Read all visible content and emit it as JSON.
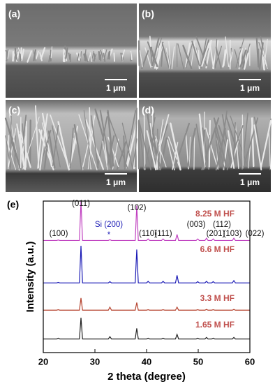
{
  "sem_panels": [
    {
      "label": "(a)",
      "scale_bar": "1 μm"
    },
    {
      "label": "(b)",
      "scale_bar": "1 μm"
    },
    {
      "label": "(c)",
      "scale_bar": "1 μm"
    },
    {
      "label": "(d)",
      "scale_bar": "1 μm"
    }
  ],
  "chart_data": {
    "type": "line",
    "panel_label": "(e)",
    "x_label": "2 theta (degree)",
    "y_label": "Intensity (a.u.)",
    "xlim": [
      20,
      60
    ],
    "xticks": [
      20,
      30,
      40,
      50,
      60
    ],
    "ylim": [
      0,
      100
    ],
    "x": [
      20,
      22.6,
      22.9,
      23.2,
      27.0,
      27.3,
      27.6,
      32.6,
      32.9,
      33.2,
      37.8,
      38.1,
      38.4,
      40.0,
      40.3,
      40.6,
      42.9,
      43.2,
      43.5,
      45.6,
      45.9,
      46.2,
      49.6,
      49.9,
      50.2,
      51.3,
      51.6,
      51.9,
      52.6,
      52.9,
      53.2,
      56.6,
      56.9,
      57.2,
      60
    ],
    "label_color": "#c0504d",
    "series": [
      {
        "name": "1.65 M HF",
        "color": "#222222",
        "values": [
          9,
          9,
          9.5,
          9,
          9,
          23,
          9,
          9,
          10.5,
          9,
          9,
          16,
          9,
          9,
          9.5,
          9,
          9,
          9.5,
          9,
          9,
          12,
          9,
          9,
          9.5,
          9,
          9,
          10,
          9,
          9,
          9.5,
          9,
          9,
          10,
          9,
          9
        ]
      },
      {
        "name": "3.3 M HF",
        "color": "#b5412c",
        "values": [
          28,
          28,
          28.3,
          28,
          28,
          36,
          28,
          28,
          30,
          28,
          28,
          33,
          28,
          28,
          28.3,
          28,
          28,
          28.3,
          28,
          28,
          30,
          28,
          28,
          28.3,
          28,
          28,
          28.5,
          28,
          28,
          28.3,
          28,
          28,
          28.5,
          28,
          28
        ]
      },
      {
        "name": "6.6 M HF",
        "color": "#1a1ab5",
        "values": [
          46,
          46,
          46.3,
          46,
          46,
          70.5,
          46,
          46,
          46.8,
          46,
          46,
          68,
          46,
          46,
          47,
          46,
          46,
          47,
          46,
          46,
          51,
          46,
          46,
          46.8,
          46,
          46,
          47,
          46,
          46,
          46.8,
          46,
          46,
          47.5,
          46,
          46
        ]
      },
      {
        "name": "8.25 M HF",
        "color": "#c040c0",
        "values": [
          74,
          74,
          74.3,
          74,
          74,
          100,
          74,
          74,
          74.5,
          74,
          74,
          97,
          74,
          74,
          75,
          74,
          74,
          75,
          74,
          74,
          78,
          74,
          74,
          75,
          74,
          74,
          75.5,
          74,
          74,
          75,
          74,
          74,
          75.5,
          74,
          74
        ]
      }
    ],
    "annotations": [
      {
        "text": "(100)",
        "color": "#111111"
      },
      {
        "text": "(011)",
        "color": "#111111"
      },
      {
        "text": "Si (200)",
        "color": "#1a1ab5"
      },
      {
        "text": "*",
        "color": "#1a1ab5"
      },
      {
        "text": "(102)",
        "color": "#111111"
      },
      {
        "text": "(110)",
        "color": "#111111"
      },
      {
        "text": "(111)",
        "color": "#111111"
      },
      {
        "text": "(003)",
        "color": "#111111"
      },
      {
        "text": "(112)",
        "color": "#111111"
      },
      {
        "text": "(201)",
        "color": "#111111"
      },
      {
        "text": "(103)",
        "color": "#111111"
      },
      {
        "text": "(022)",
        "color": "#111111"
      }
    ]
  }
}
